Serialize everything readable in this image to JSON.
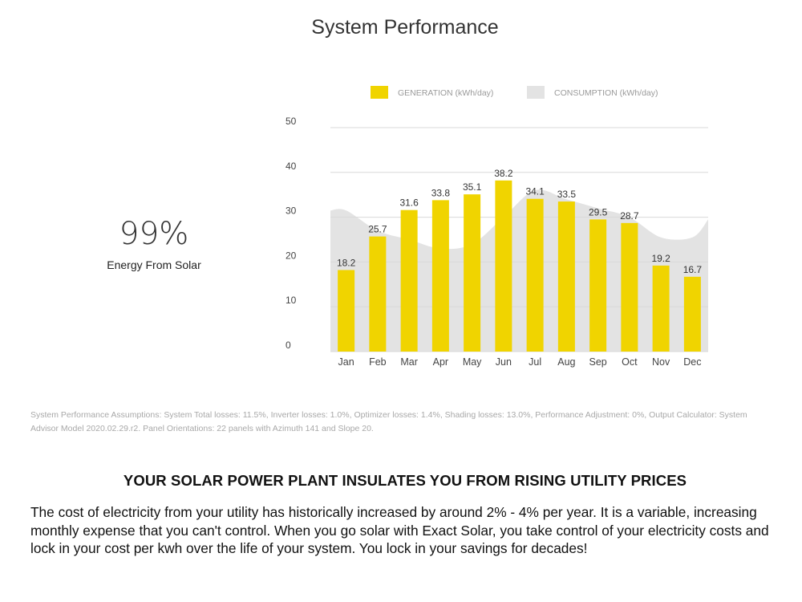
{
  "page": {
    "title": "System Performance",
    "stat_value": "99%",
    "stat_label": "Energy From Solar",
    "assumptions": "System Performance Assumptions: System Total losses: 11.5%, Inverter losses: 1.0%, Optimizer losses: 1.4%, Shading losses: 13.0%, Performance Adjustment: 0%, Output Calculator: System Advisor Model 2020.02.29.r2. Panel Orientations: 22 panels with Azimuth 141 and Slope 20.",
    "headline": "YOUR SOLAR POWER PLANT INSULATES YOU FROM RISING UTILITY PRICES",
    "body": "The cost of electricity from your utility has historically increased by around 2% - 4% per year.  It is a variable, increasing monthly expense that you can't control.  When you go solar with Exact Solar, you take control of your electricity costs and lock in your cost per kwh over the life of your system.  You lock in your savings for decades!"
  },
  "chart_data": {
    "type": "bar",
    "title": "",
    "xlabel": "",
    "ylabel": "",
    "ylim": [
      0,
      50
    ],
    "yticks": [
      0,
      10,
      20,
      30,
      40,
      50
    ],
    "grid": true,
    "legend_position": "top",
    "categories": [
      "Jan",
      "Feb",
      "Mar",
      "Apr",
      "May",
      "Jun",
      "Jul",
      "Aug",
      "Sep",
      "Oct",
      "Nov",
      "Dec"
    ],
    "series": [
      {
        "name": "GENERATION (kWh/day)",
        "type": "bar",
        "color": "#f0d400",
        "values": [
          18.2,
          25.7,
          31.6,
          33.8,
          35.1,
          38.2,
          34.1,
          33.5,
          29.5,
          28.7,
          19.2,
          16.7
        ],
        "labels": [
          "18.2",
          "25.7",
          "31.6",
          "33.8",
          "35.1",
          "38.2",
          "34.1",
          "33.5",
          "29.5",
          "28.7",
          "19.2",
          "16.7"
        ]
      },
      {
        "name": "CONSUMPTION (kWh/day)",
        "type": "area",
        "color": "#e3e3e3",
        "values": [
          31.5,
          27,
          25,
          23,
          24,
          30,
          36,
          34,
          32,
          30,
          25.5,
          25.5
        ],
        "edge_start": 31.5,
        "edge_end": 29.5
      }
    ]
  }
}
